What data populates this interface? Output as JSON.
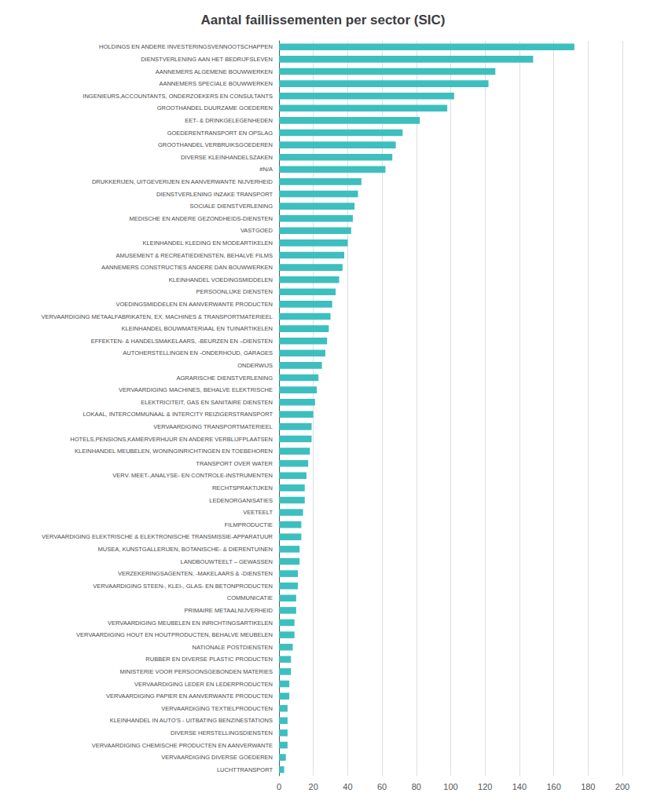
{
  "chart_data": {
    "type": "bar",
    "orientation": "horizontal",
    "title": "Aantal faillissementen per sector (SIC)",
    "color": "#3dbfbf",
    "grid": true,
    "xlim": [
      0,
      200
    ],
    "xticks": [
      0,
      20,
      40,
      60,
      80,
      100,
      120,
      140,
      160,
      180,
      200
    ],
    "categories": [
      "HOLDINGS EN ANDERE INVESTERINGSVENNOOTSCHAPPEN",
      "DIENSTVERLENING AAN HET BEDRIJFSLEVEN",
      "AANNEMERS ALGEMENE BOUWWERKEN",
      "AANNEMERS SPECIALE BOUWWERKEN",
      "INGENIEURS,ACCOUNTANTS, ONDERZOEKERS EN CONSULTANTS",
      "GROOTHANDEL DUURZAME GOEDEREN",
      "EET- & DRINKGELEGENHEDEN",
      "GOEDERENTRANSPORT EN OPSLAG",
      "GROOTHANDEL VERBRUIKSGOEDEREN",
      "DIVERSE KLEINHANDELSZAKEN",
      "#N/A",
      "DRUKKERIJEN, UITGEVERIJEN EN AANVERWANTE NIJVERHEID",
      "DIENSTVERLENING INZAKE TRANSPORT",
      "SOCIALE DIENSTVERLENING",
      "MEDISCHE EN ANDERE GEZONDHEIDS-DIENSTEN",
      "VASTGOED",
      "KLEINHANDEL KLEDING EN MODEARTIKELEN",
      "AMUSEMENT & RECREATIEDIENSTEN, BEHALVE FILMS",
      "AANNEMERS CONSTRUCTIES ANDERE DAN BOUWWERKEN",
      "KLEINHANDEL VOEDINGSMIDDELEN",
      "PERSOONLIJKE DIENSTEN",
      "VOEDINGSMIDDELEN EN AANVERWANTE PRODUCTEN",
      "VERVAARDIGING METAALFABRIKATEN, EX. MACHINES & TRANSPORTMATERIEEL",
      "KLEINHANDEL BOUWMATERIAAL EN TUINARTIKELEN",
      "EFFEKTEN- & HANDELSMAKELAARS, -BEURZEN EN –DIENSTEN",
      "AUTOHERSTELLINGEN EN -ONDERHOUD, GARAGES",
      "ONDERWIJS",
      "AGRARISCHE DIENSTVERLENING",
      "VERVAARDIGING MACHINES, BEHALVE ELEKTRISCHE",
      "ELEKTRICITEIT, GAS EN SANITAIRE DIENSTEN",
      "LOKAAL, INTERCOMMUNAAL & INTERCITY REIZIGERSTRANSPORT",
      "VERVAARDIGING TRANSPORTMATERIEEL",
      "HOTELS,PENSIONS,KAMERVERHUUR EN ANDERE VERBLIJFPLAATSEN",
      "KLEINHANDEL MEUBELEN, WONINGINRICHTINGEN EN TOEBEHOREN",
      "TRANSPORT OVER WATER",
      "VERV. MEET-,ANALYSE- EN CONTROLE-INSTRUMENTEN",
      "RECHTSPRAKTIJKEN",
      "LEDENORGANISATIES",
      "VEETEELT",
      "FILMPRODUCTIE",
      "VERVAARDIGING ELEKTRISCHE & ELEKTRONISCHE TRANSMISSIE-APPARATUUR",
      "MUSEA, KUNSTGALLERIJEN, BOTANISCHE- & DIERENTUINEN",
      "LANDBOUWTEELT – GEWASSEN",
      "VERZEKERINGSAGENTEN, -MAKELAARS & -DIENSTEN",
      "VERVAARDIGING STEEN-, KLEI-, GLAS- EN BETONPRODUCTEN",
      "COMMUNICATIE",
      "PRIMAIRE METAALNIJVERHEID",
      "VERVAARDIGING MEUBELEN EN INRICHTINGSARTIKELEN",
      "VERVAARDIGING HOUT EN HOUTPRODUCTEN, BEHALVE MEUBELEN",
      "NATIONALE POSTDIENSTEN",
      "RUBBER EN DIVERSE PLASTIC PRODUCTEN",
      "MINISTERIE VOOR PERSOONSGEBONDEN MATERIES",
      "VERVAARDIGING LEDER EN LEDERPRODUCTEN",
      "VERVAARDIGING PAPIER EN AANVERWANTE PRODUCTEN",
      "VERVAARDIGING TEXTIELPRODUCTEN",
      "KLEINHANDEL IN AUTO'S - UITBATING BENZINESTATIONS",
      "DIVERSE HERSTELLINGSDIENSTEN",
      "VERVAARDIGING CHEMISCHE PRODUCTEN EN AANVERWANTE",
      "VERVAARDIGING DIVERSE GOEDEREN",
      "LUCHTTRANSPORT"
    ],
    "values": [
      172,
      148,
      126,
      122,
      102,
      98,
      82,
      72,
      68,
      66,
      62,
      48,
      46,
      44,
      43,
      42,
      40,
      38,
      37,
      35,
      33,
      31,
      30,
      29,
      28,
      27,
      25,
      23,
      22,
      21,
      20,
      19,
      19,
      18,
      17,
      16,
      15,
      15,
      14,
      13,
      13,
      12,
      12,
      11,
      11,
      10,
      10,
      9,
      9,
      8,
      7,
      7,
      6,
      6,
      5,
      5,
      5,
      5,
      4,
      3
    ]
  }
}
